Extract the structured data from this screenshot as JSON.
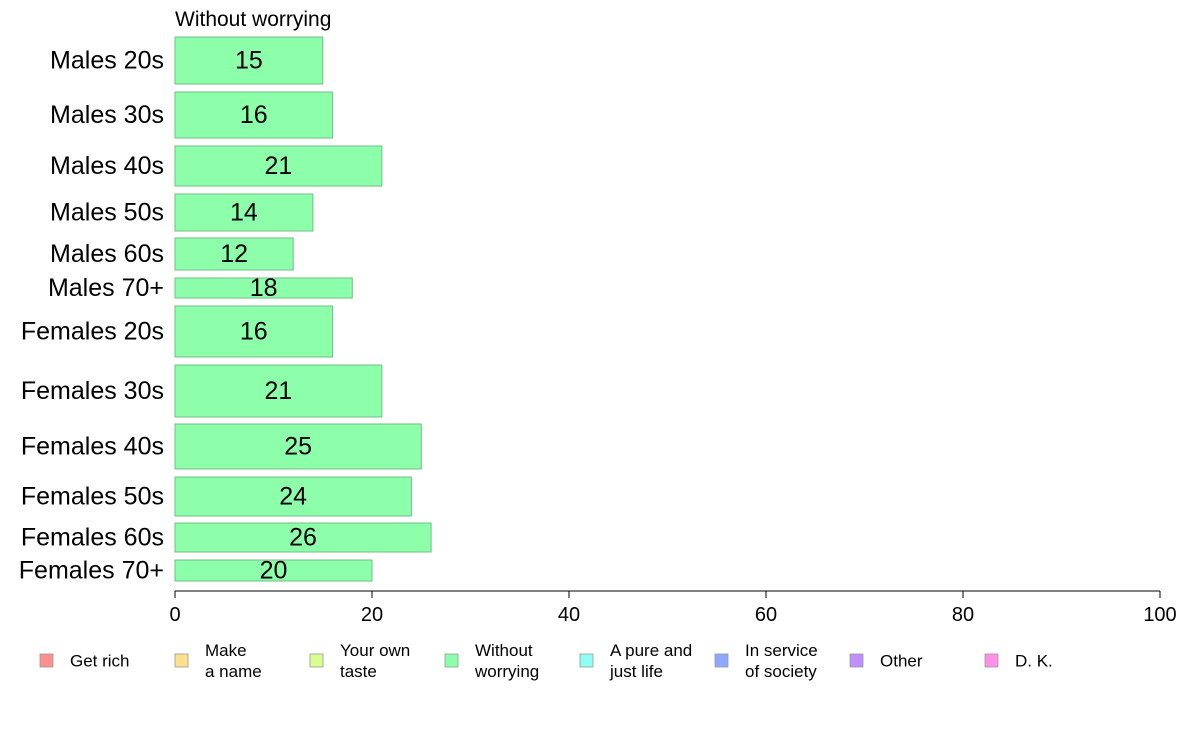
{
  "chart_data": {
    "type": "bar",
    "orientation": "horizontal",
    "title": "Without worrying",
    "categories": [
      "Males 20s",
      "Males 30s",
      "Males 40s",
      "Males 50s",
      "Males 60s",
      "Males 70+",
      "Females 20s",
      "Females 30s",
      "Females 40s",
      "Females 50s",
      "Females 60s",
      "Females 70+"
    ],
    "series": [
      {
        "name": "Without worrying",
        "values": [
          15,
          16,
          21,
          14,
          12,
          18,
          16,
          21,
          25,
          24,
          26,
          20
        ]
      }
    ],
    "bar_color": "#8dffaa",
    "bar_stroke": "#6fbf86",
    "xlim": [
      0,
      100
    ],
    "xticks": [
      "0",
      "20",
      "40",
      "60",
      "80",
      "100"
    ],
    "xlabel": "",
    "ylabel": "",
    "grid": false,
    "legend": {
      "position": "bottom",
      "items": [
        {
          "lines": [
            "Get rich"
          ],
          "color": "#ff8f8f"
        },
        {
          "lines": [
            "Make",
            "a name"
          ],
          "color": "#ffe08f"
        },
        {
          "lines": [
            "Your own",
            "taste"
          ],
          "color": "#d8ff8f"
        },
        {
          "lines": [
            "Without",
            "worrying"
          ],
          "color": "#8dffaa"
        },
        {
          "lines": [
            "A pure and",
            "just life"
          ],
          "color": "#8dfff4"
        },
        {
          "lines": [
            "In service",
            "of society"
          ],
          "color": "#8fa8ff"
        },
        {
          "lines": [
            "Other"
          ],
          "color": "#c08fff"
        },
        {
          "lines": [
            "D. K."
          ],
          "color": "#ff8fe8"
        }
      ]
    }
  }
}
